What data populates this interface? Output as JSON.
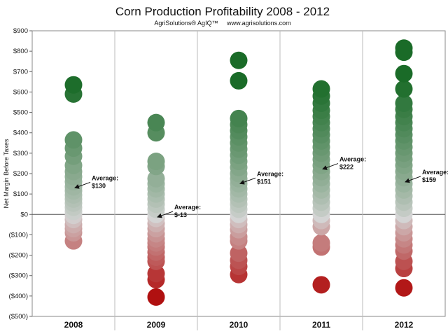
{
  "chart_data": {
    "type": "scatter",
    "title": "Corn Production Profitability 2008 - 2012",
    "subtitle": "AgriSolutions® AgIQ™     www.agrisolutions.com",
    "ylabel": "Net Margin Before Taxes",
    "xlabel": "",
    "ylim": [
      -500,
      900
    ],
    "y_ticks": [
      900,
      800,
      700,
      600,
      500,
      400,
      300,
      200,
      100,
      0,
      -100,
      -200,
      -300,
      -400,
      -500
    ],
    "y_tick_labels": [
      "$900",
      "$800",
      "$700",
      "$600",
      "$500",
      "$400",
      "$300",
      "$200",
      "$100",
      "$0",
      "($100)",
      "($200)",
      "($300)",
      "($400)",
      "($500)"
    ],
    "categories": [
      "2008",
      "2009",
      "2010",
      "2011",
      "2012"
    ],
    "grid": "vertical category separators",
    "legend": "none",
    "colors": {
      "high": "#1a6b28",
      "mid": "#d4d4d4",
      "low": "#b01010"
    },
    "series": [
      {
        "category": "2008",
        "values": [
          635,
          590,
          365,
          325,
          285,
          240,
          210,
          185,
          160,
          135,
          115,
          95,
          75,
          55,
          35,
          15,
          -5,
          -25,
          -50,
          -70,
          -90,
          -130
        ],
        "average": 130,
        "annotation_label": "Average:",
        "annotation_value": "$130"
      },
      {
        "category": "2009",
        "values": [
          450,
          400,
          260,
          235,
          175,
          150,
          125,
          100,
          75,
          50,
          25,
          0,
          -20,
          -45,
          -70,
          -95,
          -120,
          -140,
          -160,
          -185,
          -210,
          -230,
          -290,
          -320,
          -405
        ],
        "average": -13,
        "annotation_label": "Average:",
        "annotation_value": "$-13"
      },
      {
        "category": "2010",
        "values": [
          755,
          655,
          470,
          440,
          410,
          380,
          350,
          320,
          290,
          260,
          230,
          200,
          175,
          150,
          125,
          100,
          75,
          50,
          25,
          0,
          -25,
          -50,
          -75,
          -110,
          -130,
          -190,
          -225,
          -255,
          -295
        ],
        "average": 151,
        "annotation_label": "Average:",
        "annotation_value": "$151"
      },
      {
        "category": "2011",
        "values": [
          615,
          580,
          545,
          510,
          480,
          450,
          420,
          390,
          360,
          330,
          300,
          270,
          240,
          210,
          180,
          150,
          120,
          90,
          60,
          30,
          0,
          -30,
          -60,
          -140,
          -160,
          -345
        ],
        "average": 222,
        "annotation_label": "Average:",
        "annotation_value": "$222"
      },
      {
        "category": "2012",
        "values": [
          815,
          795,
          690,
          615,
          545,
          515,
          480,
          450,
          420,
          390,
          360,
          330,
          300,
          270,
          240,
          210,
          180,
          150,
          120,
          90,
          60,
          30,
          0,
          -30,
          -60,
          -90,
          -120,
          -150,
          -180,
          -230,
          -265,
          -360
        ],
        "average": 159,
        "annotation_label": "Average:",
        "annotation_value": "$159"
      }
    ]
  }
}
